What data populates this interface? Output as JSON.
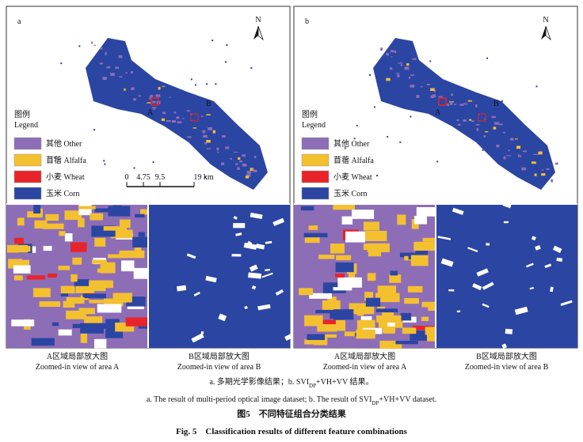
{
  "panels": [
    {
      "label": "a",
      "north": "N",
      "areas": [
        "A",
        "B"
      ],
      "legend": {
        "title_cn": "图例",
        "title_en": "Legend",
        "items": [
          "其他 Other",
          "苜蓿 Alfalfa",
          "小麦 Wheat",
          "玉米 Corn"
        ]
      },
      "scalebar": [
        "0",
        "4.75",
        "9.5",
        "19 km"
      ],
      "zooms": [
        {
          "title_cn": "A区域局部放大图",
          "title_en": "Zoomed-in view of area A"
        },
        {
          "title_cn": "B区域局部放大图",
          "title_en": "Zoomed-in view of area B"
        }
      ]
    },
    {
      "label": "b",
      "north": "N",
      "areas": [
        "A",
        "B"
      ],
      "legend": {
        "title_cn": "图例",
        "title_en": "Legend",
        "items": [
          "其他 Other",
          "苜蓿 Alfalfa",
          "小麦 Wheat",
          "玉米 Corn"
        ]
      },
      "scalebar": [],
      "zooms": [
        {
          "title_cn": "A区域局部放大图",
          "title_en": "Zoomed-in view of area A"
        },
        {
          "title_cn": "B区域局部放大图",
          "title_en": "Zoomed-in view of area B"
        }
      ]
    }
  ],
  "caption": {
    "note_cn": [
      "a. 多期光学影像结果；b. SVI",
      "DP",
      "+VH+VV 结果。"
    ],
    "note_en": [
      "a. The result of multi-period optical image dataset; b. The result of SVI",
      "DP",
      "+VH+VV dataset."
    ],
    "title_cn": "图5　不同特征组合分类结果",
    "title_en": "Fig. 5　Classification results of different feature combinations"
  }
}
